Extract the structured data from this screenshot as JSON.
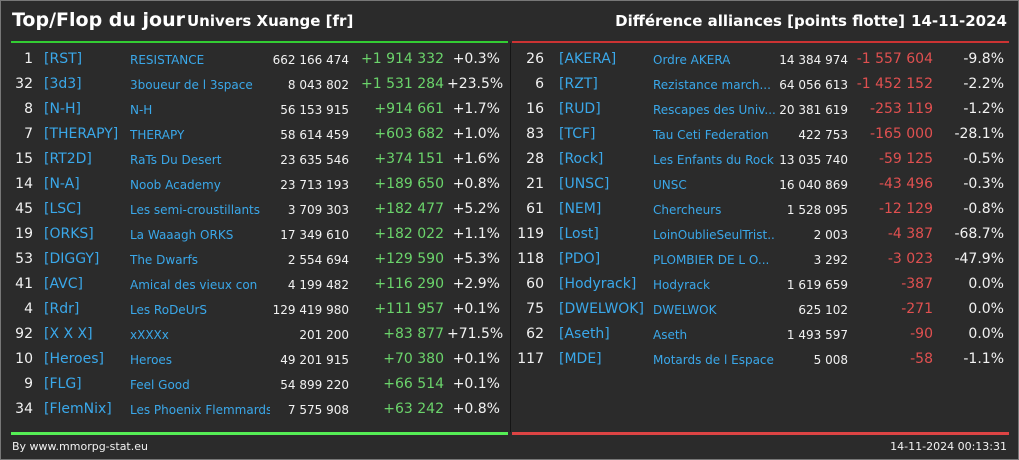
{
  "header": {
    "title": "Top/Flop du jour",
    "universe": "Univers Xuange [fr]",
    "section_title": "Différence alliances [points flotte]",
    "date": "14-11-2024"
  },
  "colors": {
    "positive": "#6bd46b",
    "negative": "#e05050",
    "tag": "#3aa8ea",
    "top_line": "#33cc33",
    "flop_line": "#cc3333"
  },
  "top": [
    {
      "rank": "1",
      "tag": "[RST]",
      "name": "RESISTANCE",
      "points": "662 166 474",
      "diff": "+1 914 332",
      "pct": "+0.3%"
    },
    {
      "rank": "32",
      "tag": "[3d3]",
      "name": "3boueur de l 3space",
      "points": "8 043 802",
      "diff": "+1 531 284",
      "pct": "+23.5%"
    },
    {
      "rank": "8",
      "tag": "[N-H]",
      "name": "N-H",
      "points": "56 153 915",
      "diff": "+914 661",
      "pct": "+1.7%"
    },
    {
      "rank": "7",
      "tag": "[THERAPY]",
      "name": "THERAPY",
      "points": "58 614 459",
      "diff": "+603 682",
      "pct": "+1.0%"
    },
    {
      "rank": "15",
      "tag": "[RT2D]",
      "name": "RaTs Du Desert",
      "points": "23 635 546",
      "diff": "+374 151",
      "pct": "+1.6%"
    },
    {
      "rank": "14",
      "tag": "[N-A]",
      "name": "Noob Academy",
      "points": "23 713 193",
      "diff": "+189 650",
      "pct": "+0.8%"
    },
    {
      "rank": "45",
      "tag": "[LSC]",
      "name": "Les semi-croustillants",
      "points": "3 709 303",
      "diff": "+182 477",
      "pct": "+5.2%"
    },
    {
      "rank": "19",
      "tag": "[ORKS]",
      "name": "La Waaagh ORKS",
      "points": "17 349 610",
      "diff": "+182 022",
      "pct": "+1.1%"
    },
    {
      "rank": "53",
      "tag": "[DIGGY]",
      "name": "The Dwarfs",
      "points": "2 554 694",
      "diff": "+129 590",
      "pct": "+5.3%"
    },
    {
      "rank": "41",
      "tag": "[AVC]",
      "name": "Amical des vieux con",
      "points": "4 199 482",
      "diff": "+116 290",
      "pct": "+2.9%"
    },
    {
      "rank": "4",
      "tag": "[Rdr]",
      "name": "Les RoDeUrS",
      "points": "129 419 980",
      "diff": "+111 957",
      "pct": "+0.1%"
    },
    {
      "rank": "92",
      "tag": "[X X X]",
      "name": "xXXXx",
      "points": "201 200",
      "diff": "+83 877",
      "pct": "+71.5%"
    },
    {
      "rank": "10",
      "tag": "[Heroes]",
      "name": "Heroes",
      "points": "49 201 915",
      "diff": "+70 380",
      "pct": "+0.1%"
    },
    {
      "rank": "9",
      "tag": "[FLG]",
      "name": "Feel Good",
      "points": "54 899 220",
      "diff": "+66 514",
      "pct": "+0.1%"
    },
    {
      "rank": "34",
      "tag": "[FlemNix]",
      "name": "Les Phoenix Flemmards",
      "points": "7 575 908",
      "diff": "+63 242",
      "pct": "+0.8%"
    }
  ],
  "flop": [
    {
      "rank": "26",
      "tag": "[AKERA]",
      "name": "Ordre AKERA",
      "points": "14 384 974",
      "diff": "-1 557 604",
      "pct": "-9.8%"
    },
    {
      "rank": "6",
      "tag": "[RZT]",
      "name": "Rezistance march...",
      "points": "64 056 613",
      "diff": "-1 452 152",
      "pct": "-2.2%"
    },
    {
      "rank": "16",
      "tag": "[RUD]",
      "name": "Rescapes des Univ...",
      "points": "20 381 619",
      "diff": "-253 119",
      "pct": "-1.2%"
    },
    {
      "rank": "83",
      "tag": "[TCF]",
      "name": "Tau Ceti Federation",
      "points": "422 753",
      "diff": "-165 000",
      "pct": "-28.1%"
    },
    {
      "rank": "28",
      "tag": "[Rock]",
      "name": "Les Enfants du Rock",
      "points": "13 035 740",
      "diff": "-59 125",
      "pct": "-0.5%"
    },
    {
      "rank": "21",
      "tag": "[UNSC]",
      "name": "UNSC",
      "points": "16 040 869",
      "diff": "-43 496",
      "pct": "-0.3%"
    },
    {
      "rank": "61",
      "tag": "[NEM]",
      "name": "Chercheurs",
      "points": "1 528 095",
      "diff": "-12 129",
      "pct": "-0.8%"
    },
    {
      "rank": "119",
      "tag": "[Lost]",
      "name": "LoinOublieSeulTrist...",
      "points": "2 003",
      "diff": "-4 387",
      "pct": "-68.7%"
    },
    {
      "rank": "118",
      "tag": "[PDO]",
      "name": "PLOMBIER DE L O...",
      "points": "3 292",
      "diff": "-3 023",
      "pct": "-47.9%"
    },
    {
      "rank": "60",
      "tag": "[Hodyrack]",
      "name": "Hodyrack",
      "points": "1 619 659",
      "diff": "-387",
      "pct": "0.0%"
    },
    {
      "rank": "75",
      "tag": "[DWELWOK]",
      "name": "DWELWOK",
      "points": "625 102",
      "diff": "-271",
      "pct": "0.0%"
    },
    {
      "rank": "62",
      "tag": "[Aseth]",
      "name": "Aseth",
      "points": "1 493 597",
      "diff": "-90",
      "pct": "0.0%"
    },
    {
      "rank": "117",
      "tag": "[MDE]",
      "name": "Motards de l Espace",
      "points": "5 008",
      "diff": "-58",
      "pct": "-1.1%"
    }
  ],
  "footer": {
    "source": "By www.mmorpg-stat.eu",
    "timestamp": "14-11-2024 00:13:31"
  }
}
